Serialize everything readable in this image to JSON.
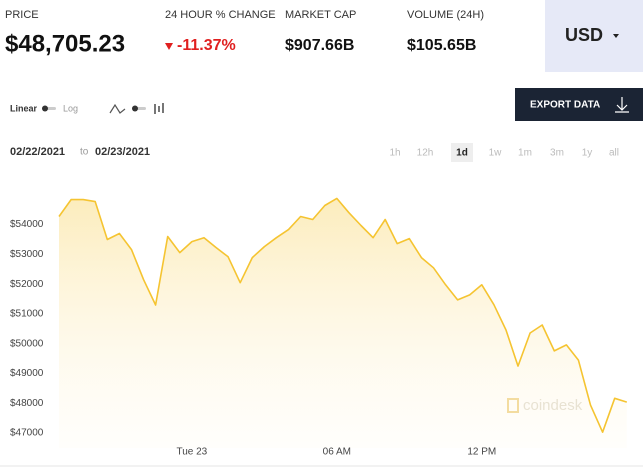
{
  "header": {
    "stats": [
      {
        "label": "PRICE",
        "value": "$48,705.23"
      },
      {
        "label": "24 HOUR % CHANGE",
        "value": "-11.37%"
      },
      {
        "label": "MARKET CAP",
        "value": "$907.66B"
      },
      {
        "label": "VOLUME (24H)",
        "value": "$105.65B"
      }
    ],
    "currency": "USD"
  },
  "toolbar": {
    "scale_options": [
      "Linear",
      "Log"
    ],
    "export": "EXPORT DATA",
    "date_from": "02/22/2021",
    "date_sep": "to",
    "date_to": "02/23/2021",
    "ranges": [
      "1h",
      "12h",
      "1d",
      "1w",
      "1m",
      "3m",
      "1y",
      "all"
    ],
    "selected_range": "1d"
  },
  "chart_data": {
    "type": "line",
    "watermark": "coindesk",
    "categories": [
      null,
      null,
      null,
      null,
      null,
      null,
      null,
      null,
      null,
      null,
      null,
      "Tue 23",
      null,
      null,
      null,
      null,
      null,
      null,
      null,
      null,
      null,
      null,
      null,
      "06 AM",
      null,
      null,
      null,
      null,
      null,
      null,
      null,
      null,
      null,
      null,
      null,
      "12 PM",
      null,
      null,
      null,
      null,
      null,
      null,
      null,
      null,
      null,
      null,
      null,
      null
    ],
    "series": [
      {
        "color": "#f5c431",
        "values": [
          54270,
          54840,
          54840,
          54770,
          53500,
          53700,
          53160,
          52150,
          51300,
          53600,
          53060,
          53430,
          53560,
          53230,
          52920,
          52050,
          52890,
          53260,
          53560,
          53830,
          54270,
          54170,
          54640,
          54880,
          54400,
          53970,
          53560,
          54170,
          53360,
          53530,
          52890,
          52550,
          51980,
          51470,
          51640,
          51980,
          51310,
          50460,
          49250,
          50360,
          50630,
          49760,
          49960,
          49450,
          47940,
          47030,
          48170,
          48040
        ]
      }
    ],
    "ylim": [
      46500,
      56000
    ],
    "yticks": [
      {
        "value": 47000,
        "label": "$47000"
      },
      {
        "value": 48000,
        "label": "$48000"
      },
      {
        "value": 49000,
        "label": "$49000"
      },
      {
        "value": 50000,
        "label": "$50000"
      },
      {
        "value": 51000,
        "label": "$51000"
      },
      {
        "value": 52000,
        "label": "$52000"
      },
      {
        "value": 53000,
        "label": "$53000"
      },
      {
        "value": 54000,
        "label": "$54000"
      }
    ],
    "grid": false
  }
}
